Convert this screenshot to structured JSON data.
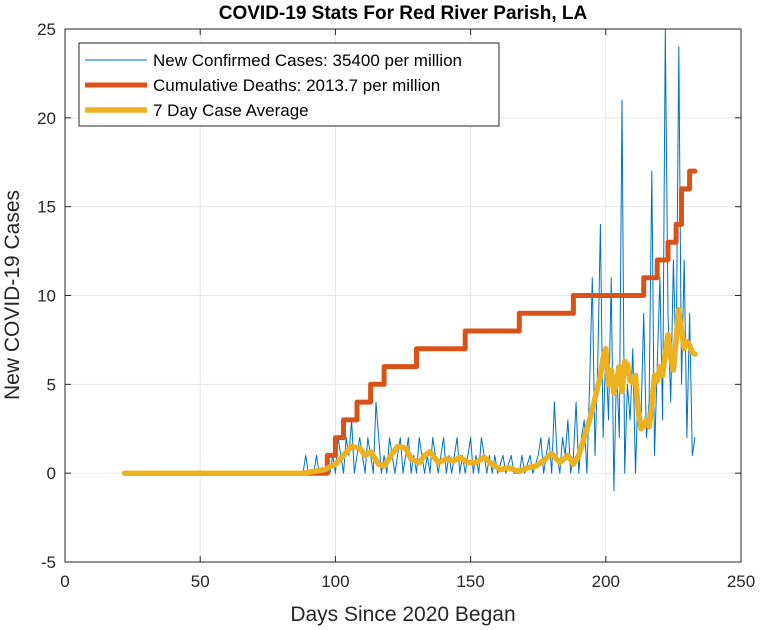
{
  "chart_data": {
    "type": "line",
    "title": "COVID-19 Stats For Red River Parish, LA",
    "xlabel": "Days Since 2020 Began",
    "ylabel": "New COVID-19 Cases",
    "xlim": [
      0,
      250
    ],
    "ylim": [
      -5,
      25
    ],
    "xticks": [
      0,
      50,
      100,
      150,
      200,
      250
    ],
    "yticks": [
      -5,
      0,
      5,
      10,
      15,
      20,
      25
    ],
    "grid": true,
    "legend_position": "top-left",
    "series": [
      {
        "name": "New Confirmed Cases: 35400 per million",
        "color": "#0072BD",
        "points": [
          [
            22,
            0
          ],
          [
            88,
            0
          ],
          [
            89,
            1
          ],
          [
            90,
            0
          ],
          [
            92,
            0
          ],
          [
            93,
            1
          ],
          [
            94,
            0
          ],
          [
            96,
            0
          ],
          [
            97,
            1
          ],
          [
            98,
            0
          ],
          [
            99,
            1
          ],
          [
            100,
            0
          ],
          [
            101,
            2
          ],
          [
            102,
            1
          ],
          [
            103,
            0
          ],
          [
            104,
            2
          ],
          [
            105,
            1
          ],
          [
            106,
            3
          ],
          [
            107,
            0
          ],
          [
            108,
            1
          ],
          [
            109,
            2
          ],
          [
            110,
            1
          ],
          [
            111,
            0
          ],
          [
            112,
            2
          ],
          [
            113,
            1
          ],
          [
            114,
            0
          ],
          [
            115,
            4
          ],
          [
            116,
            2
          ],
          [
            117,
            0
          ],
          [
            118,
            1
          ],
          [
            119,
            0
          ],
          [
            120,
            2
          ],
          [
            121,
            1
          ],
          [
            122,
            0
          ],
          [
            123,
            1
          ],
          [
            124,
            2
          ],
          [
            125,
            0
          ],
          [
            126,
            1
          ],
          [
            127,
            2
          ],
          [
            128,
            0
          ],
          [
            129,
            1
          ],
          [
            130,
            0
          ],
          [
            131,
            2
          ],
          [
            132,
            1
          ],
          [
            133,
            0
          ],
          [
            134,
            1
          ],
          [
            135,
            0
          ],
          [
            136,
            2
          ],
          [
            137,
            1
          ],
          [
            138,
            0
          ],
          [
            139,
            1
          ],
          [
            140,
            2
          ],
          [
            141,
            0
          ],
          [
            142,
            1
          ],
          [
            143,
            0
          ],
          [
            144,
            1
          ],
          [
            145,
            2
          ],
          [
            146,
            0
          ],
          [
            147,
            1
          ],
          [
            148,
            0
          ],
          [
            149,
            1
          ],
          [
            150,
            2
          ],
          [
            151,
            0
          ],
          [
            152,
            1
          ],
          [
            153,
            0
          ],
          [
            154,
            2
          ],
          [
            155,
            1
          ],
          [
            156,
            0
          ],
          [
            157,
            1
          ],
          [
            158,
            0
          ],
          [
            159,
            1
          ],
          [
            160,
            0
          ],
          [
            162,
            1
          ],
          [
            163,
            0
          ],
          [
            165,
            1
          ],
          [
            166,
            0
          ],
          [
            168,
            0
          ],
          [
            169,
            1
          ],
          [
            170,
            0
          ],
          [
            172,
            1
          ],
          [
            173,
            0
          ],
          [
            175,
            1
          ],
          [
            176,
            2
          ],
          [
            177,
            0
          ],
          [
            178,
            1
          ],
          [
            179,
            2
          ],
          [
            180,
            0
          ],
          [
            181,
            4
          ],
          [
            182,
            1
          ],
          [
            183,
            0
          ],
          [
            184,
            2
          ],
          [
            185,
            1
          ],
          [
            186,
            3
          ],
          [
            187,
            0
          ],
          [
            188,
            1
          ],
          [
            189,
            4
          ],
          [
            190,
            0
          ],
          [
            191,
            2
          ],
          [
            192,
            3
          ],
          [
            193,
            0
          ],
          [
            194,
            5
          ],
          [
            195,
            11
          ],
          [
            196,
            1
          ],
          [
            197,
            6
          ],
          [
            198,
            14
          ],
          [
            199,
            2
          ],
          [
            200,
            7
          ],
          [
            201,
            3
          ],
          [
            202,
            11
          ],
          [
            203,
            -1
          ],
          [
            204,
            6
          ],
          [
            205,
            2
          ],
          [
            206,
            21
          ],
          [
            207,
            0
          ],
          [
            208,
            5
          ],
          [
            209,
            3
          ],
          [
            210,
            7
          ],
          [
            211,
            0
          ],
          [
            212,
            5
          ],
          [
            213,
            3
          ],
          [
            214,
            9
          ],
          [
            215,
            2
          ],
          [
            216,
            4
          ],
          [
            217,
            17
          ],
          [
            218,
            1
          ],
          [
            219,
            6
          ],
          [
            220,
            11
          ],
          [
            221,
            3
          ],
          [
            222,
            25
          ],
          [
            223,
            9
          ],
          [
            224,
            4
          ],
          [
            225,
            12
          ],
          [
            226,
            6
          ],
          [
            227,
            24
          ],
          [
            228,
            5
          ],
          [
            229,
            12
          ],
          [
            230,
            2
          ],
          [
            231,
            9
          ],
          [
            232,
            1
          ],
          [
            233,
            2
          ]
        ]
      },
      {
        "name": "Cumulative Deaths: 2013.7 per million",
        "color": "#D95319",
        "points": [
          [
            88,
            0
          ],
          [
            97,
            0
          ],
          [
            97,
            1
          ],
          [
            100,
            1
          ],
          [
            100,
            2
          ],
          [
            103,
            2
          ],
          [
            103,
            3
          ],
          [
            108,
            3
          ],
          [
            108,
            4
          ],
          [
            113,
            4
          ],
          [
            113,
            5
          ],
          [
            118,
            5
          ],
          [
            118,
            6
          ],
          [
            130,
            6
          ],
          [
            130,
            7
          ],
          [
            148,
            7
          ],
          [
            148,
            8
          ],
          [
            168,
            8
          ],
          [
            168,
            9
          ],
          [
            188,
            9
          ],
          [
            188,
            10
          ],
          [
            214,
            10
          ],
          [
            214,
            11
          ],
          [
            219,
            11
          ],
          [
            219,
            12
          ],
          [
            223,
            12
          ],
          [
            223,
            13
          ],
          [
            226,
            13
          ],
          [
            226,
            14
          ],
          [
            228,
            14
          ],
          [
            228,
            16
          ],
          [
            231,
            16
          ],
          [
            231,
            17
          ],
          [
            233,
            17
          ]
        ]
      },
      {
        "name": "7 Day Case Average",
        "color": "#EDB120",
        "points": [
          [
            22,
            0
          ],
          [
            88,
            0
          ],
          [
            96,
            0.2
          ],
          [
            100,
            0.5
          ],
          [
            103,
            1.0
          ],
          [
            106,
            1.5
          ],
          [
            109,
            1.4
          ],
          [
            111,
            1.0
          ],
          [
            113,
            1.2
          ],
          [
            116,
            0.5
          ],
          [
            118,
            0.4
          ],
          [
            121,
            1.1
          ],
          [
            123,
            1.5
          ],
          [
            126,
            1.4
          ],
          [
            128,
            0.8
          ],
          [
            131,
            0.6
          ],
          [
            133,
            1.0
          ],
          [
            135,
            1.2
          ],
          [
            138,
            0.6
          ],
          [
            141,
            0.8
          ],
          [
            144,
            0.7
          ],
          [
            146,
            0.9
          ],
          [
            149,
            0.6
          ],
          [
            152,
            0.6
          ],
          [
            155,
            0.9
          ],
          [
            158,
            0.5
          ],
          [
            161,
            0.2
          ],
          [
            164,
            0.3
          ],
          [
            166,
            0.2
          ],
          [
            168,
            0.1
          ],
          [
            171,
            0.3
          ],
          [
            174,
            0.4
          ],
          [
            177,
            0.7
          ],
          [
            180,
            1.1
          ],
          [
            183,
            0.6
          ],
          [
            186,
            1.0
          ],
          [
            188,
            0.5
          ],
          [
            190,
            1.0
          ],
          [
            192,
            2.0
          ],
          [
            194,
            3.0
          ],
          [
            196,
            4.2
          ],
          [
            198,
            5.5
          ],
          [
            199,
            6.5
          ],
          [
            200,
            7.0
          ],
          [
            201,
            5.0
          ],
          [
            202,
            5.8
          ],
          [
            203,
            4.5
          ],
          [
            204,
            5.2
          ],
          [
            205,
            6.0
          ],
          [
            206,
            4.6
          ],
          [
            207,
            6.3
          ],
          [
            208,
            6.1
          ],
          [
            209,
            5.2
          ],
          [
            210,
            5.1
          ],
          [
            211,
            5.5
          ],
          [
            212,
            3.5
          ],
          [
            213,
            2.5
          ],
          [
            214,
            2.7
          ],
          [
            215,
            3.0
          ],
          [
            216,
            2.6
          ],
          [
            217,
            3.8
          ],
          [
            218,
            5.5
          ],
          [
            219,
            5.2
          ],
          [
            220,
            6.0
          ],
          [
            221,
            5.5
          ],
          [
            222,
            6.8
          ],
          [
            223,
            7.8
          ],
          [
            224,
            6.5
          ],
          [
            225,
            5.8
          ],
          [
            226,
            7.5
          ],
          [
            227,
            9.2
          ],
          [
            228,
            8.0
          ],
          [
            229,
            7.0
          ],
          [
            230,
            7.4
          ],
          [
            231,
            7.2
          ],
          [
            232,
            6.8
          ],
          [
            233,
            6.7
          ]
        ]
      }
    ]
  }
}
